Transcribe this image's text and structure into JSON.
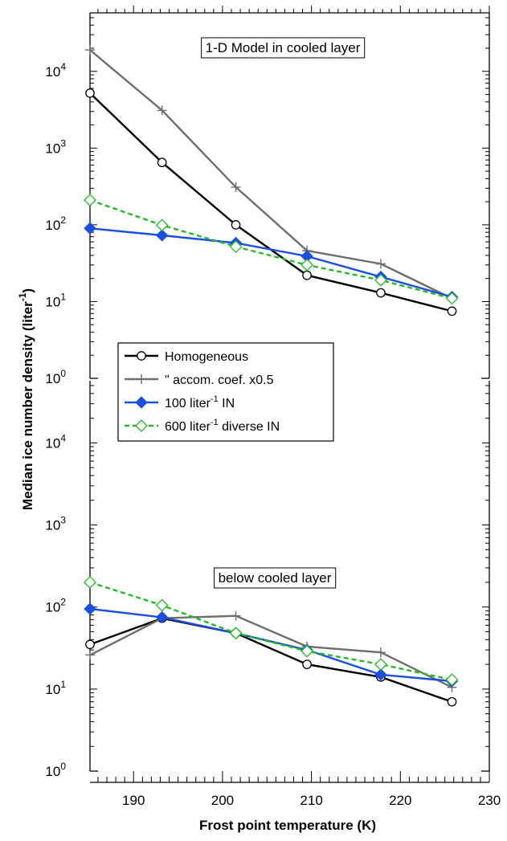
{
  "chart_data": [
    {
      "type": "line",
      "panel": "top",
      "annotation": "1-D Model in cooled layer",
      "x": [
        185.1,
        193.2,
        201.5,
        209.5,
        217.8,
        225.8
      ],
      "xlim": [
        185.1,
        230
      ],
      "ylim": [
        1,
        50000
      ],
      "yscale": "log",
      "series": [
        {
          "key": "hom",
          "values": [
            5200,
            650,
            100,
            22,
            13,
            7.5
          ]
        },
        {
          "key": "hom_acc",
          "values": [
            19000,
            3100,
            310,
            46,
            31,
            11
          ]
        },
        {
          "key": "in100",
          "values": [
            90,
            73,
            58,
            39,
            21,
            11.5
          ]
        },
        {
          "key": "in600",
          "values": [
            210,
            99,
            52,
            30,
            19,
            11
          ]
        }
      ]
    },
    {
      "type": "line",
      "panel": "bottom",
      "annotation": "below cooled layer",
      "x": [
        185.1,
        193.2,
        201.5,
        209.5,
        217.8,
        225.8
      ],
      "xlim": [
        185.1,
        230
      ],
      "ylim": [
        1,
        50000
      ],
      "yscale": "log",
      "series": [
        {
          "key": "hom",
          "values": [
            35,
            73,
            48,
            20,
            14,
            7
          ]
        },
        {
          "key": "hom_acc",
          "values": [
            26,
            73,
            78,
            33,
            28,
            10.5
          ]
        },
        {
          "key": "in100",
          "values": [
            95,
            75,
            48,
            30,
            15,
            12.5
          ]
        },
        {
          "key": "in600",
          "values": [
            200,
            105,
            48,
            29,
            20,
            13
          ]
        }
      ]
    }
  ],
  "series_style": {
    "hom": {
      "color": "#000000",
      "marker": "circle-open",
      "dash": ""
    },
    "hom_acc": {
      "color": "#6e6e6e",
      "marker": "plus",
      "dash": ""
    },
    "in100": {
      "color": "#1a4fe0",
      "marker": "diamond-filled",
      "dash": ""
    },
    "in600": {
      "color": "#22bb22",
      "marker": "diamond-open",
      "dash": "6,4"
    }
  },
  "legend": {
    "placement": "between panels, left",
    "entries": [
      {
        "key": "hom",
        "label": "Homogeneous"
      },
      {
        "key": "hom_acc",
        "label": "\"   accom. coef. x0.5"
      },
      {
        "key": "in100",
        "label_main": "100 liter",
        "label_sup": "-1",
        "label_rest": " IN"
      },
      {
        "key": "in600",
        "label_main": "600 liter",
        "label_sup": "-1",
        "label_rest": " diverse IN"
      }
    ]
  },
  "axes": {
    "xlabel": "Frost point temperature (K)",
    "ylabel_main": "Median ice number density (liter",
    "ylabel_sup": "-1",
    "ylabel_close": ")",
    "x_ticks": [
      190,
      200,
      210,
      220,
      230
    ],
    "y_tick_exponents": [
      0,
      1,
      2,
      3,
      4
    ],
    "y_tick_base": "10"
  }
}
